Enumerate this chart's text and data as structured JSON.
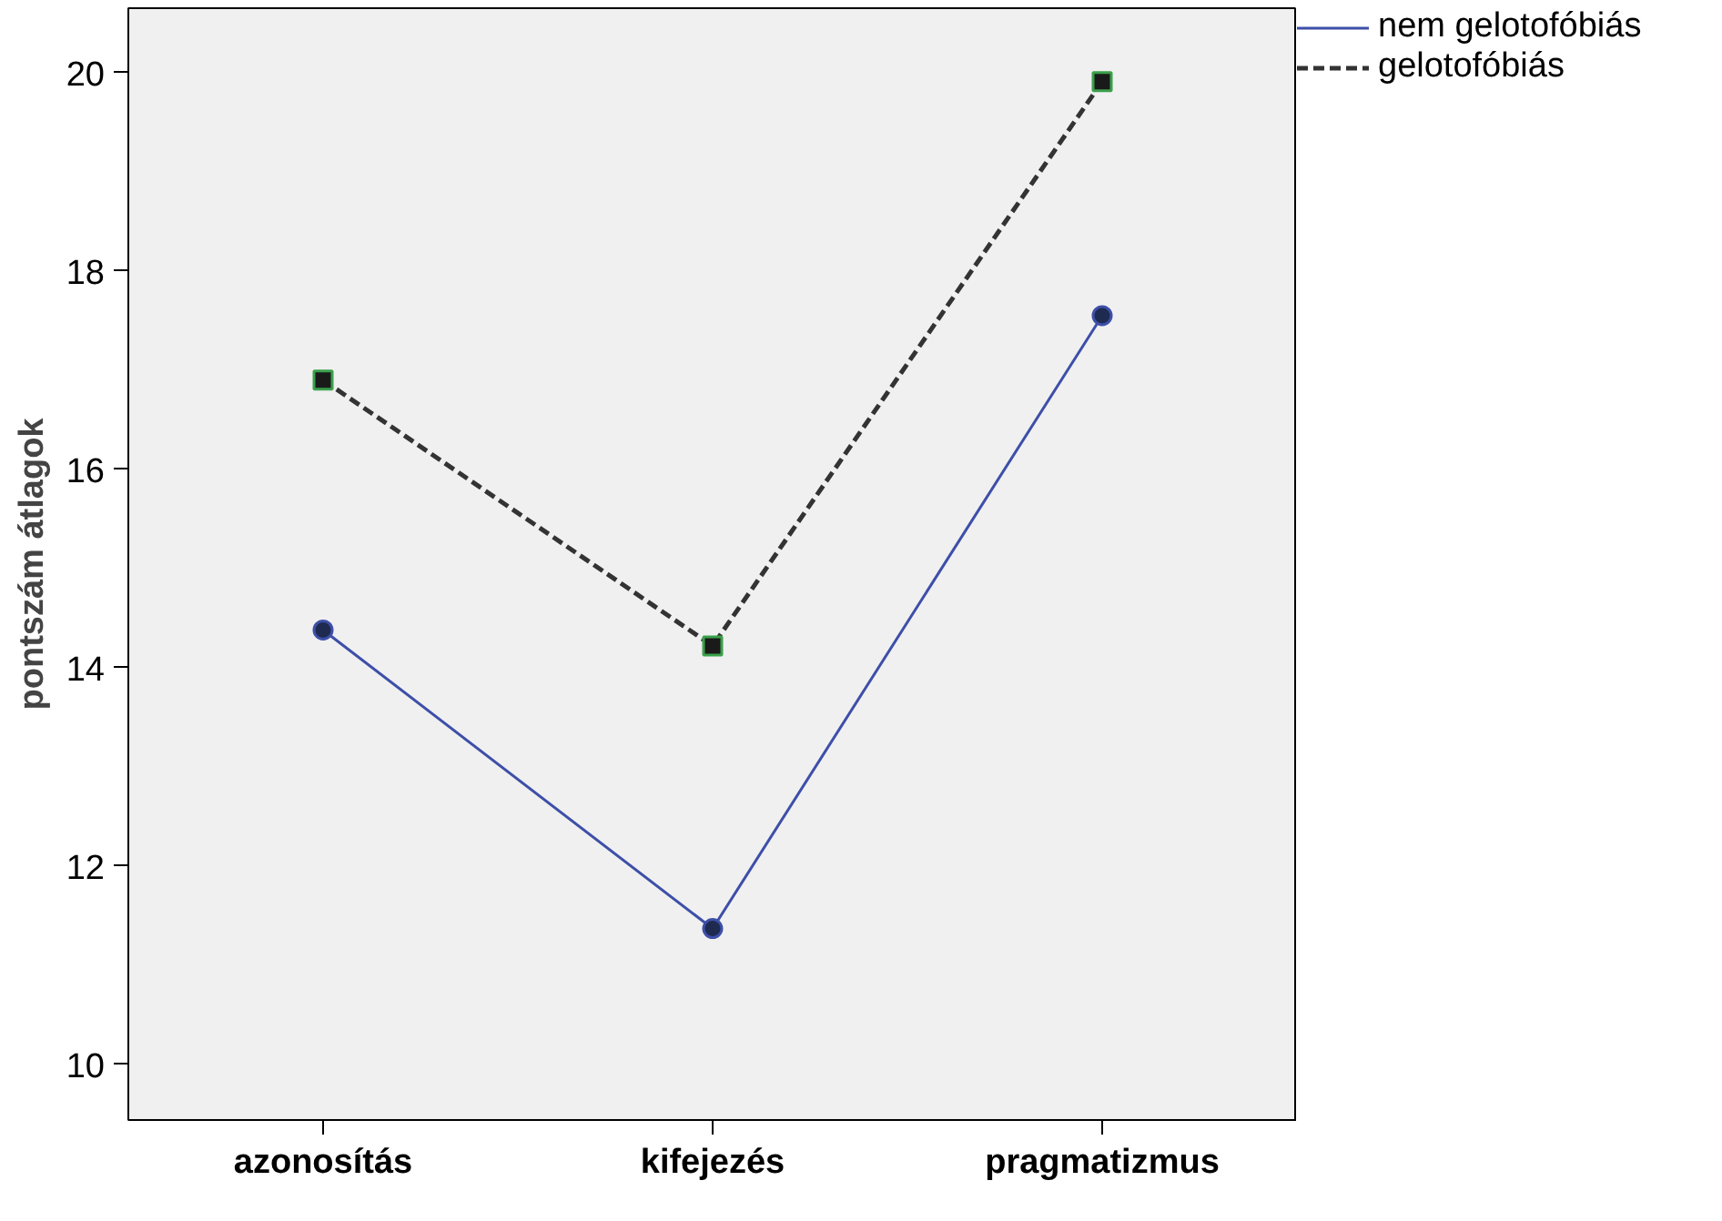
{
  "chart_data": {
    "type": "line",
    "ylabel": "pontszám átlagok",
    "categories": [
      "azonosítás",
      "kifejezés",
      "pragmatizmus"
    ],
    "series": [
      {
        "name": "nem gelotofóbiás",
        "color": "#3d4fa8",
        "values": [
          14.38,
          11.37,
          17.55
        ],
        "marker": "circle",
        "line_style": "solid"
      },
      {
        "name": "gelotofóbiás",
        "color": "#333333",
        "values": [
          16.9,
          14.22,
          19.91
        ],
        "marker": "square",
        "line_style": "dashed"
      }
    ],
    "ylim": [
      9.44,
      20.65
    ],
    "yticks": [
      10,
      12,
      14,
      16,
      18,
      20
    ],
    "grid": false,
    "legend": "top right"
  }
}
